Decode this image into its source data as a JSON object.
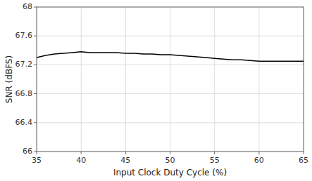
{
  "chart_data": {
    "type": "line",
    "x": [
      35,
      36,
      37,
      38,
      39,
      40,
      41,
      42,
      43,
      44,
      45,
      46,
      47,
      48,
      49,
      50,
      51,
      52,
      53,
      54,
      55,
      56,
      57,
      58,
      59,
      60,
      61,
      62,
      63,
      64,
      65
    ],
    "values": [
      67.3,
      67.33,
      67.35,
      67.36,
      67.37,
      67.38,
      67.37,
      67.37,
      67.37,
      67.37,
      67.36,
      67.36,
      67.35,
      67.35,
      67.34,
      67.34,
      67.33,
      67.32,
      67.31,
      67.3,
      67.29,
      67.28,
      67.27,
      67.27,
      67.26,
      67.25,
      67.25,
      67.25,
      67.25,
      67.25,
      67.25
    ],
    "xlabel": "Input Clock Duty Cycle (%)",
    "ylabel": "SNR (dBFS)",
    "xlim": [
      35,
      65
    ],
    "ylim": [
      66,
      68
    ],
    "xticks": [
      35,
      40,
      45,
      50,
      55,
      60,
      65
    ],
    "yticks": [
      66,
      66.4,
      66.8,
      67.2,
      67.6,
      68
    ],
    "color": "#000000",
    "grid": true
  }
}
